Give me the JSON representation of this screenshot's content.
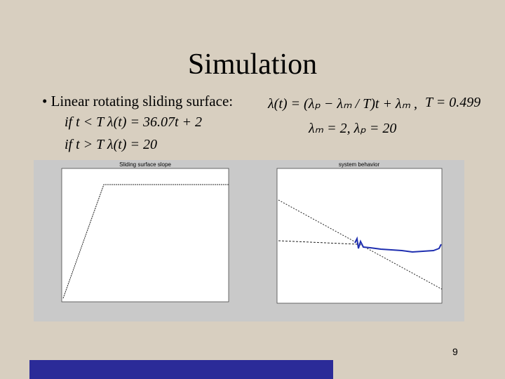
{
  "slide": {
    "title": "Simulation",
    "bullet": "Linear rotating sliding surface:",
    "equations": {
      "main": "λ(t) = (λₚ − λₘ / T)t + λₘ ,",
      "period": "T = 0.499",
      "params": "λₘ = 2,  λₚ = 20",
      "case_before": "if t < T   λ(t) = 36.07t + 2",
      "case_after": "if t > T   λ(t) = 20"
    },
    "figures": [
      {
        "title": "Sliding surface slope"
      },
      {
        "title": "system behavior"
      }
    ],
    "page_number": "9"
  }
}
